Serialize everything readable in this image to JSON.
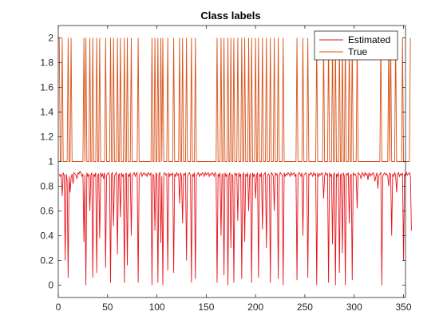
{
  "chart_data": {
    "type": "line",
    "title": "Class labels",
    "xlabel": "",
    "ylabel": "",
    "xlim": [
      0,
      352
    ],
    "ylim": [
      -0.1,
      2.1
    ],
    "xticks": [
      "0",
      "50",
      "100",
      "150",
      "200",
      "250",
      "300",
      "350"
    ],
    "xtick_values": [
      0,
      50,
      100,
      150,
      200,
      250,
      300,
      350
    ],
    "yticks": [
      "0",
      "0.2",
      "0.4",
      "0.6",
      "0.8",
      "1",
      "1.2",
      "1.4",
      "1.6",
      "1.8",
      "2"
    ],
    "ytick_values": [
      0,
      0.2,
      0.4,
      0.6,
      0.8,
      1,
      1.2,
      1.4,
      1.6,
      1.8,
      2
    ],
    "grid": false,
    "legend": "top-right",
    "series": [
      {
        "name": "Estimated",
        "color": "#e8141a",
        "values": [
          0.9,
          0.88,
          0.9,
          0.72,
          0.91,
          0.89,
          0.2,
          0.9,
          0.85,
          0.06,
          0.88,
          0.75,
          0.87,
          0.9,
          0.82,
          0.91,
          0.9,
          0.89,
          0.86,
          0.91,
          0.9,
          0.92,
          0.91,
          0.88,
          0.9,
          0.35,
          0.89,
          0.0,
          0.91,
          0.88,
          0.9,
          0.6,
          0.89,
          0.91,
          0.06,
          0.9,
          0.88,
          0.91,
          0.1,
          0.89,
          0.9,
          0.38,
          0.91,
          0.88,
          0.9,
          0.86,
          0.91,
          0.14,
          0.89,
          0.9,
          0.91,
          0.88,
          0.02,
          0.9,
          0.91,
          0.48,
          0.88,
          0.9,
          0.91,
          0.25,
          0.89,
          0.9,
          0.55,
          0.91,
          0.88,
          0.9,
          0.02,
          0.89,
          0.91,
          0.16,
          0.9,
          0.88,
          0.91,
          0.4,
          0.89,
          0.9,
          0.91,
          0.88,
          0.9,
          0.91,
          0.02,
          0.89,
          0.9,
          0.91,
          0.88,
          0.9,
          0.91,
          0.89,
          0.9,
          0.88,
          0.91,
          0.9,
          0.89,
          0.91,
          0.0,
          0.9,
          0.88,
          0.44,
          0.91,
          0.89,
          0.02,
          0.9,
          0.91,
          0.34,
          0.88,
          0.0,
          0.9,
          0.91,
          0.89,
          0.9,
          0.12,
          0.91,
          0.88,
          0.9,
          0.89,
          0.91,
          0.1,
          0.9,
          0.88,
          0.91,
          0.89,
          0.9,
          0.66,
          0.91,
          0.88,
          0.5,
          0.9,
          0.89,
          0.91,
          0.2,
          0.88,
          0.9,
          0.91,
          0.89,
          0.02,
          0.9,
          0.88,
          0.91,
          0.05,
          0.89,
          0.9,
          0.91,
          0.88,
          0.9,
          0.89,
          0.91,
          0.9,
          0.88,
          0.91,
          0.89,
          0.9,
          0.91,
          0.88,
          0.9,
          0.89,
          0.91,
          0.9,
          0.88,
          0.91,
          0.89,
          0.02,
          0.9,
          0.88,
          0.91,
          0.4,
          0.89,
          0.9,
          0.08,
          0.91,
          0.88,
          0.9,
          0.0,
          0.89,
          0.91,
          0.3,
          0.9,
          0.88,
          0.02,
          0.91,
          0.89,
          0.9,
          0.52,
          0.91,
          0.88,
          0.9,
          0.05,
          0.89,
          0.91,
          0.35,
          0.9,
          0.88,
          0.91,
          0.6,
          0.89,
          0.9,
          0.02,
          0.91,
          0.88,
          0.9,
          0.7,
          0.89,
          0.91,
          0.06,
          0.9,
          0.88,
          0.91,
          0.45,
          0.89,
          0.9,
          0.91,
          0.3,
          0.88,
          0.9,
          0.89,
          0.02,
          0.91,
          0.9,
          0.88,
          0.6,
          0.91,
          0.89,
          0.9,
          0.05,
          0.88,
          0.91,
          0.9,
          0.89,
          0.0,
          0.91,
          0.88,
          0.9,
          0.89,
          0.91,
          0.9,
          0.88,
          0.91,
          0.89,
          0.9,
          0.91,
          0.88,
          0.9,
          0.04,
          0.89,
          0.91,
          0.9,
          0.88,
          0.91,
          0.4,
          0.89,
          0.9,
          0.91,
          0.88,
          0.06,
          0.9,
          0.89,
          0.91,
          0.9,
          0.88,
          0.91,
          0.89,
          0.9,
          0.0,
          0.91,
          0.88,
          0.9,
          0.89,
          0.91,
          0.9,
          0.7,
          0.88,
          0.91,
          0.89,
          0.9,
          0.02,
          0.91,
          0.88,
          0.9,
          0.33,
          0.89,
          0.91,
          0.0,
          0.9,
          0.88,
          0.91,
          0.1,
          0.89,
          0.9,
          0.26,
          0.91,
          0.88,
          0.0,
          0.9,
          0.89,
          0.91,
          0.5,
          0.88,
          0.9,
          0.04,
          0.91,
          0.89,
          0.9,
          0.88,
          0.62,
          0.91,
          0.9,
          0.89,
          0.86,
          0.91,
          0.9,
          0.88,
          0.91,
          0.89,
          0.9,
          0.85,
          0.91,
          0.88,
          0.9,
          0.89,
          0.91,
          0.9,
          0.84,
          0.88,
          0.91,
          0.78,
          0.89,
          0.9,
          0.91,
          0.0,
          0.88,
          0.9,
          0.91,
          0.89,
          0.9,
          0.88,
          0.8,
          0.91,
          0.89,
          0.4,
          0.9,
          0.88,
          0.91,
          0.89,
          0.75,
          0.9,
          0.91,
          0.88,
          0.9,
          0.89,
          0.91,
          0.2,
          0.9,
          0.88,
          0.91,
          0.89,
          0.9,
          0.91,
          0.88,
          0.44
        ]
      },
      {
        "name": "True",
        "color": "#d95319",
        "values": [
          2,
          1,
          1,
          2,
          1,
          1,
          1,
          1,
          1,
          2,
          1,
          1,
          2,
          1,
          1,
          1,
          1,
          1,
          1,
          1,
          1,
          1,
          1,
          1,
          1,
          2,
          1,
          2,
          1,
          1,
          1,
          2,
          1,
          1,
          2,
          1,
          1,
          1,
          2,
          1,
          1,
          2,
          1,
          1,
          1,
          1,
          1,
          2,
          1,
          1,
          1,
          1,
          2,
          1,
          1,
          2,
          1,
          1,
          1,
          2,
          1,
          1,
          2,
          1,
          1,
          1,
          2,
          1,
          1,
          2,
          1,
          1,
          1,
          2,
          1,
          1,
          1,
          1,
          1,
          1,
          2,
          1,
          1,
          1,
          1,
          1,
          1,
          1,
          1,
          1,
          1,
          1,
          1,
          1,
          2,
          1,
          1,
          2,
          1,
          1,
          2,
          1,
          1,
          2,
          1,
          2,
          1,
          1,
          1,
          1,
          2,
          1,
          1,
          1,
          1,
          1,
          2,
          1,
          1,
          1,
          1,
          1,
          2,
          1,
          1,
          2,
          1,
          1,
          1,
          2,
          1,
          1,
          1,
          1,
          2,
          1,
          1,
          1,
          2,
          1,
          1,
          1,
          1,
          1,
          1,
          1,
          1,
          1,
          1,
          1,
          1,
          1,
          1,
          1,
          1,
          1,
          1,
          1,
          1,
          1,
          2,
          1,
          1,
          1,
          2,
          1,
          1,
          2,
          1,
          1,
          1,
          2,
          1,
          1,
          2,
          1,
          1,
          2,
          1,
          1,
          1,
          2,
          1,
          1,
          1,
          2,
          1,
          1,
          2,
          1,
          1,
          1,
          2,
          1,
          1,
          2,
          1,
          1,
          1,
          2,
          1,
          1,
          2,
          1,
          1,
          1,
          2,
          1,
          1,
          1,
          2,
          1,
          1,
          1,
          2,
          1,
          1,
          1,
          2,
          1,
          1,
          1,
          2,
          1,
          1,
          1,
          1,
          2,
          1,
          1,
          1,
          1,
          1,
          1,
          1,
          1,
          1,
          1,
          1,
          1,
          1,
          2,
          1,
          1,
          1,
          1,
          1,
          2,
          1,
          1,
          1,
          1,
          2,
          1,
          1,
          1,
          1,
          1,
          1,
          1,
          1,
          2,
          1,
          1,
          1,
          1,
          1,
          1,
          2,
          1,
          1,
          1,
          1,
          2,
          1,
          1,
          1,
          2,
          1,
          1,
          2,
          1,
          1,
          1,
          2,
          1,
          1,
          2,
          1,
          1,
          2,
          1,
          1,
          1,
          2,
          1,
          1,
          2,
          1,
          1,
          1,
          1,
          2,
          1,
          1,
          1,
          1,
          1,
          1,
          1,
          1,
          1,
          1,
          1,
          1,
          1,
          1,
          1,
          1,
          1,
          1,
          1,
          1,
          1,
          1,
          1,
          2,
          1,
          1,
          1,
          1,
          1,
          1,
          1,
          2,
          1,
          2,
          1,
          1,
          1,
          1,
          2,
          1,
          1,
          1,
          1,
          1,
          1,
          2,
          1,
          1,
          1,
          1,
          1,
          1,
          1,
          2
        ]
      }
    ]
  }
}
